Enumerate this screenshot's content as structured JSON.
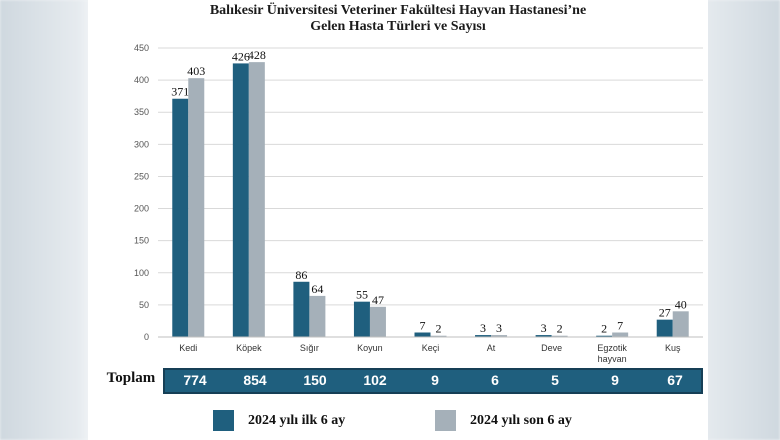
{
  "chart_data": {
    "type": "bar",
    "title_lines": [
      "Balıkesir Üniversitesi Veteriner Fakültesi Hayvan Hastanesi’ne",
      "Gelen Hasta Türleri ve Sayısı"
    ],
    "categories": [
      "Kedi",
      "Köpek",
      "Sığır",
      "Koyun",
      "Keçi",
      "At",
      "Deve",
      "Egzotik hayvan",
      "Kuş"
    ],
    "category_lines": [
      [
        "Kedi"
      ],
      [
        "Köpek"
      ],
      [
        "Sığır"
      ],
      [
        "Koyun"
      ],
      [
        "Keçi"
      ],
      [
        "At"
      ],
      [
        "Deve"
      ],
      [
        "Egzotik",
        "hayvan"
      ],
      [
        "Kuş"
      ]
    ],
    "series": [
      {
        "name": "2024 yılı ilk 6 ay",
        "color": "#1f5f7e",
        "values": [
          371,
          426,
          86,
          55,
          7,
          3,
          3,
          2,
          27
        ]
      },
      {
        "name": "2024 yılı son 6 ay",
        "color": "#a5b0b9",
        "values": [
          403,
          428,
          64,
          47,
          2,
          3,
          2,
          7,
          40
        ]
      }
    ],
    "ylim": [
      0,
      450
    ],
    "yticks": [
      0,
      50,
      100,
      150,
      200,
      250,
      300,
      350,
      400,
      450
    ],
    "grid": true,
    "legend_position": "bottom",
    "totals_label": "Toplam",
    "totals": [
      "774",
      "854",
      "150",
      "102",
      "9",
      "6",
      "5",
      "9",
      "67"
    ]
  }
}
